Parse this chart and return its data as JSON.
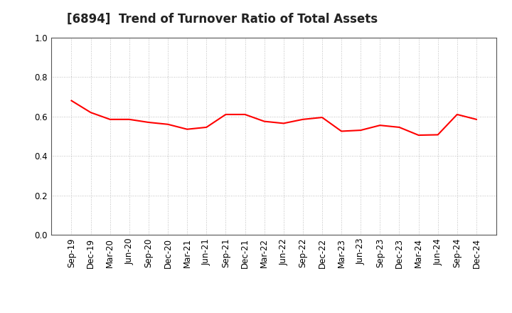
{
  "title": "[6894]  Trend of Turnover Ratio of Total Assets",
  "x_labels": [
    "Sep-19",
    "Dec-19",
    "Mar-20",
    "Jun-20",
    "Sep-20",
    "Dec-20",
    "Mar-21",
    "Jun-21",
    "Sep-21",
    "Dec-21",
    "Mar-22",
    "Jun-22",
    "Sep-22",
    "Dec-22",
    "Mar-23",
    "Jun-23",
    "Sep-23",
    "Dec-23",
    "Mar-24",
    "Jun-24",
    "Sep-24",
    "Dec-24"
  ],
  "y_values": [
    0.68,
    0.62,
    0.585,
    0.585,
    0.57,
    0.56,
    0.535,
    0.545,
    0.61,
    0.61,
    0.575,
    0.565,
    0.585,
    0.595,
    0.525,
    0.53,
    0.555,
    0.545,
    0.505,
    0.507,
    0.61,
    0.585
  ],
  "line_color": "#FF0000",
  "line_width": 1.5,
  "ylim": [
    0.0,
    1.0
  ],
  "yticks": [
    0.0,
    0.2,
    0.4,
    0.6,
    0.8,
    1.0
  ],
  "background_color": "#ffffff",
  "grid_color": "#aaaaaa",
  "title_fontsize": 12,
  "tick_fontsize": 8.5
}
